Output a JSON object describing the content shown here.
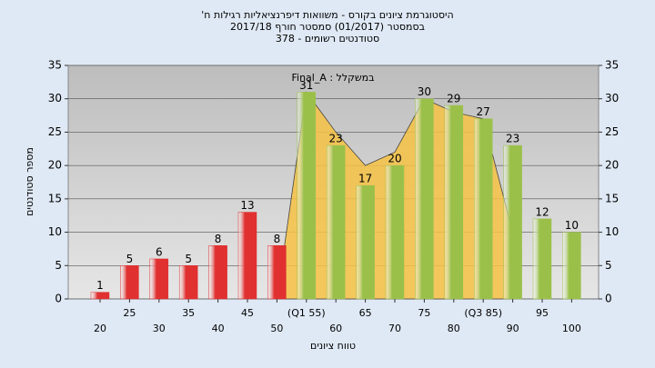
{
  "chart_data": {
    "type": "bar",
    "title": [
      "היסטוגרמת ציונים בקורס - משוואות דיפרנציאליות רגילות ח'",
      "בסמסטר (01/2017) סמסטר חורף 2017/18",
      "סטודנטים רשומים - 378"
    ],
    "x_label": "טווח ציונים",
    "y_label": "מספר סטודנטים",
    "categories": [
      "20",
      "25",
      "30",
      "35",
      "40",
      "45",
      "50",
      "(Q1 55)",
      "60",
      "65",
      "70",
      "75",
      "80",
      "(Q3 85)",
      "90",
      "95",
      "100"
    ],
    "series": [
      {
        "name": "Final_A : במשקלל",
        "type": "area",
        "color": "#f6c244",
        "values": [
          null,
          null,
          null,
          null,
          null,
          null,
          0,
          31,
          25,
          20,
          22,
          30,
          28,
          27,
          10,
          null,
          null
        ]
      },
      {
        "values": [
          1,
          5,
          6,
          5,
          8,
          13,
          8,
          31,
          23,
          17,
          20,
          30,
          29,
          27,
          23,
          12,
          10
        ],
        "colors": [
          "#e03030",
          "#e03030",
          "#e03030",
          "#e03030",
          "#e03030",
          "#e03030",
          "#e03030",
          "#9bc04a",
          "#9bc04a",
          "#9bc04a",
          "#9bc04a",
          "#9bc04a",
          "#9bc04a",
          "#9bc04a",
          "#9bc04a",
          "#9bc04a",
          "#9bc04a"
        ]
      }
    ],
    "ylim": [
      0,
      35
    ],
    "yticks": [
      0,
      5,
      10,
      15,
      20,
      25,
      30,
      35
    ],
    "y2lim": [
      0,
      35
    ],
    "y2ticks": [
      0,
      5,
      10,
      15,
      20,
      25,
      30,
      35
    ],
    "grid": true
  }
}
